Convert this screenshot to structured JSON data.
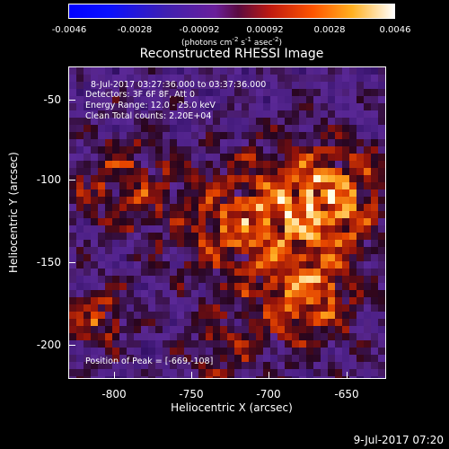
{
  "colorbar": {
    "ticks": [
      "-0.0046",
      "-0.0028",
      "-0.00092",
      "0.00092",
      "0.0028",
      "0.0046"
    ],
    "units_prefix": "(photons cm",
    "units_exp1": "-2",
    "units_mid1": " s",
    "units_exp2": "-1",
    "units_mid2": " asec",
    "units_exp3": "-2",
    "units_suffix": ")"
  },
  "title": "Reconstructed RHESSI Image",
  "annotations": {
    "time": "8-Jul-2017 03:27:36.000 to 03:37:36.000",
    "detectors": "Detectors: 3F 6F 8F, Att 0",
    "energy": "Energy Range: 12.0 - 25.0 keV",
    "clean": "Clean    Total counts: 2.20E+04",
    "peak": "Position of Peak = [-669,-108]"
  },
  "axes": {
    "xlabel": "Heliocentric X (arcsec)",
    "ylabel": "Heliocentric Y (arcsec)",
    "xticks": [
      "-800",
      "-750",
      "-700",
      "-650"
    ],
    "yticks": [
      "-50",
      "-100",
      "-150",
      "-200"
    ]
  },
  "footer": "9-Jul-2017 07:20"
}
